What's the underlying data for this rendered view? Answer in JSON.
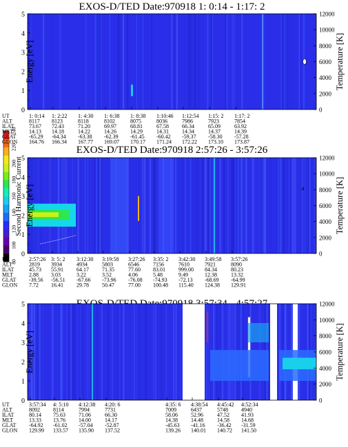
{
  "colorbar": {
    "label": "Second Harmonic Current",
    "ticks": [
      "80",
      "100",
      "120",
      "140",
      "160",
      "180",
      "200",
      "220",
      "240"
    ],
    "colors": [
      "#000000",
      "#4b006e",
      "#6a00aa",
      "#3f1fd9",
      "#2b2bff",
      "#1f6bff",
      "#1aa3f0",
      "#19d0ea",
      "#14f0b4",
      "#2ee64f",
      "#78ef1a",
      "#c8f21a",
      "#f5e81a",
      "#f7b21a",
      "#f56a1a",
      "#e82020"
    ]
  },
  "chart_data": [
    {
      "type": "heatmap",
      "title": "EXOS-D/TED   Date:970918  1: 0:14 - 1:17: 2",
      "ylabel": "Energy [eV]",
      "y2label": "Temperature [K]",
      "ylim": [
        0,
        5
      ],
      "y2lim": [
        0,
        12000
      ],
      "yticks": [
        0,
        1,
        2,
        3,
        4,
        5
      ],
      "y2ticks": [
        0,
        2000,
        4000,
        6000,
        8000,
        10000,
        12000
      ],
      "columns": [
        {
          "ut": "1: 0:14",
          "alt": "8117",
          "ilat": "73.67",
          "mlt": "14.13",
          "glat": "-65.29",
          "glon": "164.76"
        },
        {
          "ut": "1: 2:22",
          "alt": "8123",
          "ilat": "72.43",
          "mlt": "14.18",
          "glat": "-64.34",
          "glon": "166.34"
        },
        {
          "ut": "1: 4:30",
          "alt": "8118",
          "ilat": "71.20",
          "mlt": "14.22",
          "glat": "-63.38",
          "glon": "167.77"
        },
        {
          "ut": "1: 6:38",
          "alt": "8102",
          "ilat": "69.97",
          "mlt": "14.26",
          "glat": "-62.39",
          "glon": "169.07"
        },
        {
          "ut": "1: 8:38",
          "alt": "8075",
          "ilat": "68.81",
          "mlt": "14.29",
          "glat": "-61.45",
          "glon": "170.17"
        },
        {
          "ut": "1:10:46",
          "alt": "8036",
          "ilat": "67.58",
          "mlt": "14.31",
          "glat": "-60.42",
          "glon": "171.24"
        },
        {
          "ut": "1:12:54",
          "alt": "7986",
          "ilat": "66.34",
          "mlt": "14.34",
          "glat": "-59.37",
          "glon": "172.22"
        },
        {
          "ut": "1:15: 2",
          "alt": "7923",
          "ilat": "65.09",
          "mlt": "14.37",
          "glat": "-58.30",
          "glon": "173.10"
        },
        {
          "ut": "1:17: 2",
          "alt": "7854",
          "ilat": "63.92",
          "mlt": "14.39",
          "glat": "-57.28",
          "glon": "173.87"
        }
      ],
      "row_labels": [
        "UT",
        "ALT",
        "ILAT",
        "MLT",
        "GLAT",
        "GLON"
      ]
    },
    {
      "type": "heatmap",
      "title": "EXOS-D/TED   Date:970918  2:57:26 - 3:57:26",
      "ylabel": "Energy [eV]",
      "y2label": "Temperature [K]",
      "ylim": [
        0,
        5
      ],
      "y2lim": [
        0,
        12000
      ],
      "yticks": [
        0,
        1,
        2,
        3,
        4,
        5
      ],
      "y2ticks": [
        0,
        2000,
        4000,
        6000,
        8000,
        10000,
        12000
      ],
      "columns": [
        {
          "ut": "2:57:26",
          "alt": "2819",
          "ilat": "45.73",
          "mlt": "2.88",
          "glat": "-39.56",
          "glon": "7.72"
        },
        {
          "ut": "3: 5: 2",
          "alt": "3934",
          "ilat": "55.91",
          "mlt": "3.03",
          "glat": "-56.51",
          "glon": "16.41"
        },
        {
          "ut": "3:12:30",
          "alt": "4934",
          "ilat": "64.17",
          "mlt": "3.22",
          "glat": "-67.66",
          "glon": "29.78"
        },
        {
          "ut": "3:19:58",
          "alt": "5803",
          "ilat": "71.35",
          "mlt": "3.52",
          "glat": "-73.96",
          "glon": "50.47"
        },
        {
          "ut": "3:27:26",
          "alt": "6546",
          "ilat": "77.60",
          "mlt": "4.06",
          "glat": "-76.08",
          "glon": "77.00"
        },
        {
          "ut": "3:35: 2",
          "alt": "7156",
          "ilat": "83.01",
          "mlt": "5.48",
          "glat": "-74.93",
          "glon": "100.48"
        },
        {
          "ut": "3:42:30",
          "alt": "7610",
          "ilat": "999.00",
          "mlt": "9.49",
          "glat": "-72.13",
          "glon": "115.40"
        },
        {
          "ut": "3:49:58",
          "alt": "7921",
          "ilat": "84.34",
          "mlt": "12.38",
          "glat": "-68.69",
          "glon": "124.38"
        },
        {
          "ut": "3:57:26",
          "alt": "8090",
          "ilat": "80.23",
          "mlt": "13.32",
          "glat": "-64.99",
          "glon": "129.91"
        }
      ],
      "row_labels": [
        "UT",
        "ALT",
        "ILAT",
        "MLT",
        "GLAT",
        "GLON"
      ]
    },
    {
      "type": "heatmap",
      "title": "EXOS-D/TED   Date:970918  3:57:34 - 4:57:27",
      "ylabel": "Energy [eV]",
      "y2label": "Temperature [K]",
      "ylim": [
        0,
        5
      ],
      "y2lim": [
        0,
        12000
      ],
      "yticks": [
        0,
        1,
        2,
        3,
        4,
        5
      ],
      "y2ticks": [
        0,
        2000,
        4000,
        6000,
        8000,
        10000,
        12000
      ],
      "columns": [
        {
          "ut": "3:57:34",
          "alt": "8092",
          "ilat": "80.14",
          "mlt": "13.33",
          "glat": "-64.92",
          "glon": "129.99"
        },
        {
          "ut": "4: 5:10",
          "alt": "8114",
          "ilat": "75.63",
          "mlt": "13.76",
          "glat": "-61.02",
          "glon": "133.57"
        },
        {
          "ut": "4:12:38",
          "alt": "7994",
          "ilat": "71.06",
          "mlt": "14.00",
          "glat": "-57.04",
          "glon": "135.90"
        },
        {
          "ut": "4:20: 6",
          "alt": "7731",
          "ilat": "66.30",
          "mlt": "14.17",
          "glat": "-52.87",
          "glon": "137.52"
        },
        {
          "ut": "4:35: 6",
          "alt": "7009",
          "ilat": "58.06",
          "mlt": "14.38",
          "glat": "-45.63",
          "glon": "139.26"
        },
        {
          "ut": "4:38:54",
          "alt": "6437",
          "ilat": "52.96",
          "mlt": "14.48",
          "glat": "-41.16",
          "glon": "140.01"
        },
        {
          "ut": "4:45:42",
          "alt": "5748",
          "ilat": "47.52",
          "mlt": "14.58",
          "glat": "-36.42",
          "glon": "140.72"
        },
        {
          "ut": "4:52:34",
          "alt": "4940",
          "ilat": "41.93",
          "mlt": "14.68",
          "glat": "-31.59",
          "glon": "141.50"
        }
      ],
      "row_labels": [
        "UT",
        "ALT",
        "ILAT",
        "MLT",
        "GLAT",
        "GLON"
      ]
    }
  ]
}
